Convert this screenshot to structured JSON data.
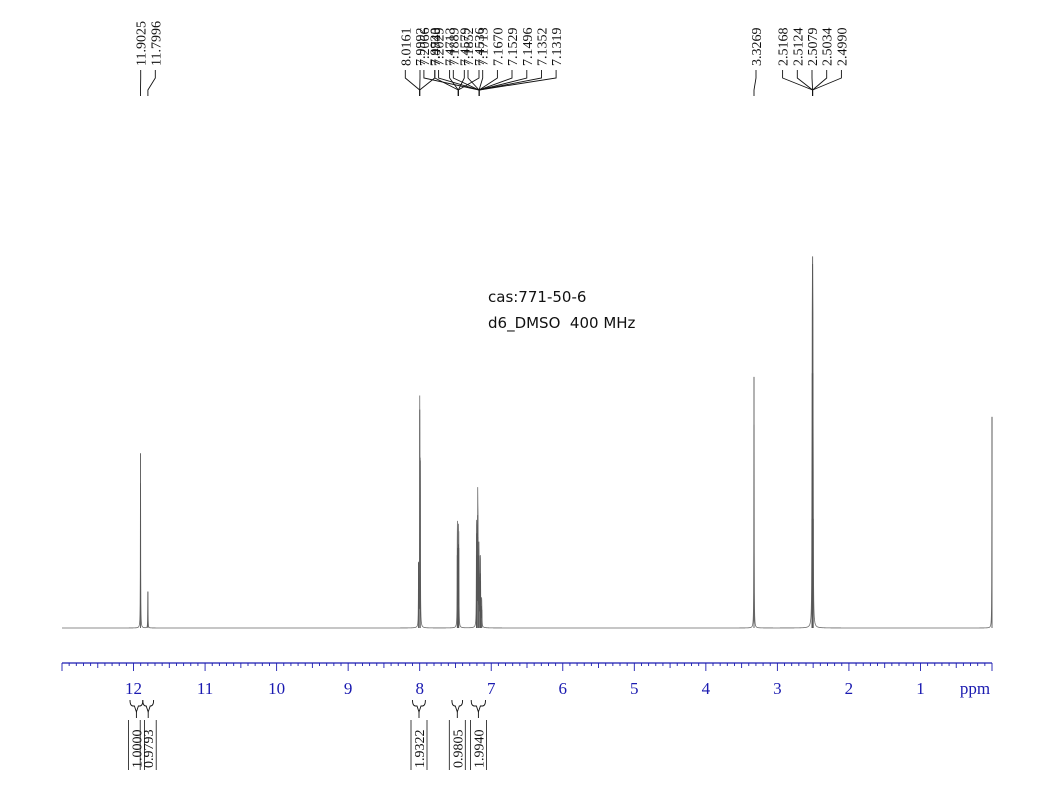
{
  "annotation": {
    "cas": "cas:771-50-6",
    "solvent": "d6_DMSO  400 MHz"
  },
  "chart_data": {
    "type": "line",
    "title": "",
    "xlabel": "ppm",
    "ylabel": "",
    "xlim": [
      13.0,
      0.0
    ],
    "x_reversed": true,
    "x_ticks": [
      12,
      11,
      10,
      9,
      8,
      7,
      6,
      5,
      4,
      3,
      2,
      1
    ],
    "peaks": [
      {
        "ppm": 11.9025,
        "height": 0.48
      },
      {
        "ppm": 11.7996,
        "height": 0.1
      },
      {
        "ppm": 8.0161,
        "height": 0.18
      },
      {
        "ppm": 7.9992,
        "height": 0.6
      },
      {
        "ppm": 7.992,
        "height": 0.46
      },
      {
        "ppm": 7.4743,
        "height": 0.2
      },
      {
        "ppm": 7.4713,
        "height": 0.22
      },
      {
        "ppm": 7.4579,
        "height": 0.23
      },
      {
        "ppm": 7.4536,
        "height": 0.22
      },
      {
        "ppm": 7.2066,
        "height": 0.2
      },
      {
        "ppm": 7.2029,
        "height": 0.26
      },
      {
        "ppm": 7.1889,
        "height": 0.31
      },
      {
        "ppm": 7.1852,
        "height": 0.25
      },
      {
        "ppm": 7.1713,
        "height": 0.2
      },
      {
        "ppm": 7.167,
        "height": 0.14
      },
      {
        "ppm": 7.1529,
        "height": 0.15
      },
      {
        "ppm": 7.1496,
        "height": 0.13
      },
      {
        "ppm": 7.1352,
        "height": 0.06
      },
      {
        "ppm": 7.1319,
        "height": 0.05
      },
      {
        "ppm": 3.3269,
        "height": 0.69
      },
      {
        "ppm": 2.5168,
        "height": 0.3
      },
      {
        "ppm": 2.5124,
        "height": 0.7
      },
      {
        "ppm": 2.5079,
        "height": 1.0
      },
      {
        "ppm": 2.5034,
        "height": 0.7
      },
      {
        "ppm": 2.499,
        "height": 0.3
      },
      {
        "ppm": 0.0,
        "height": 0.58
      }
    ],
    "peak_label_groups": [
      {
        "labels": [
          "11.9025",
          "11.7996"
        ],
        "apex": [
          11.9025,
          11.7996
        ]
      },
      {
        "labels": [
          "8.0161",
          "7.9992",
          "7.9920"
        ],
        "apex": [
          8.0
        ]
      },
      {
        "labels": [
          "7.4743",
          "7.4713",
          "7.4579",
          "7.4536"
        ],
        "apex": [
          7.46
        ]
      },
      {
        "labels": [
          "7.2066",
          "7.2029",
          "7.1889",
          "7.1852",
          "7.1713",
          "7.1670",
          "7.1529",
          "7.1496",
          "7.1352",
          "7.1319"
        ],
        "apex": [
          7.17
        ]
      },
      {
        "labels": [
          "3.3269"
        ],
        "apex": [
          3.3269
        ]
      },
      {
        "labels": [
          "2.5168",
          "2.5124",
          "2.5079",
          "2.5034",
          "2.4990"
        ],
        "apex": [
          2.5079
        ]
      }
    ],
    "integrals": [
      {
        "from": 12.05,
        "to": 11.87,
        "value": "1.0000"
      },
      {
        "from": 11.87,
        "to": 11.72,
        "value": "0.9793"
      },
      {
        "from": 8.1,
        "to": 7.92,
        "value": "1.9322"
      },
      {
        "from": 7.55,
        "to": 7.4,
        "value": "0.9805"
      },
      {
        "from": 7.28,
        "to": 7.08,
        "value": "1.9940"
      }
    ]
  }
}
